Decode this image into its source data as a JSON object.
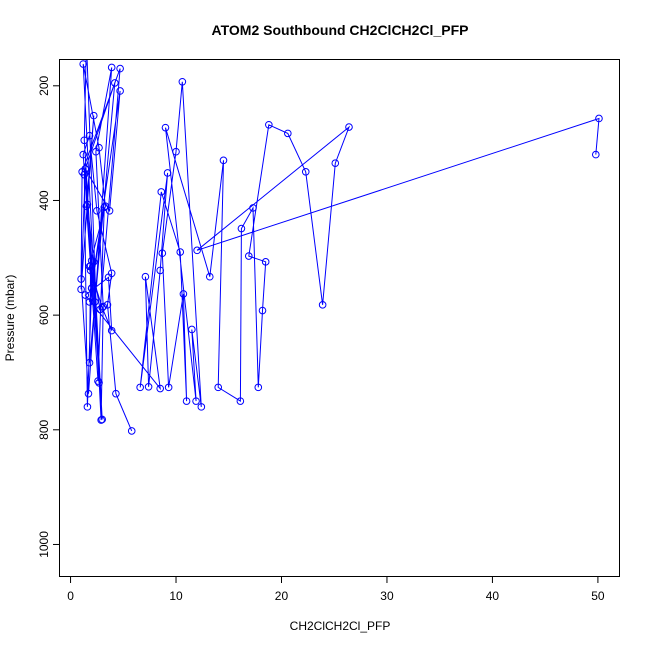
{
  "chart_data": {
    "type": "scatter",
    "title": "ATOM2 Southbound CH2ClCH2Cl_PFP",
    "xlabel": "CH2ClCH2Cl_PFP",
    "ylabel": "Pressure (mbar)",
    "xlim": [
      -1,
      52
    ],
    "ylim": [
      1055,
      155
    ],
    "y_reversed": true,
    "xticks": [
      0,
      10,
      20,
      30,
      40,
      50
    ],
    "yticks": [
      200,
      400,
      600,
      800,
      1000
    ],
    "grid": false,
    "legend": "none",
    "style": "lines-with-open-circles",
    "series_color": "#0000ff",
    "points": [
      [
        5.8,
        802
      ],
      [
        4.3,
        737
      ],
      [
        3.5,
        582
      ],
      [
        3.9,
        527
      ],
      [
        2.5,
        418
      ],
      [
        1.8,
        287
      ],
      [
        1.2,
        320
      ],
      [
        3.0,
        782
      ],
      [
        2.2,
        507
      ],
      [
        1.6,
        407
      ],
      [
        1.3,
        355
      ],
      [
        1.6,
        760
      ],
      [
        2.0,
        553
      ],
      [
        1.8,
        515
      ],
      [
        3.3,
        410
      ],
      [
        2.7,
        308
      ],
      [
        1.2,
        162
      ],
      [
        2.9,
        783
      ],
      [
        3.1,
        585
      ],
      [
        2.4,
        315
      ],
      [
        3.9,
        168
      ],
      [
        1.7,
        737
      ],
      [
        1.0,
        537
      ],
      [
        1.1,
        350
      ],
      [
        4.7,
        170
      ],
      [
        2.8,
        590
      ],
      [
        2.0,
        505
      ],
      [
        1.3,
        295
      ],
      [
        1.5,
        120
      ],
      [
        2.7,
        718
      ],
      [
        2.3,
        577
      ],
      [
        1.4,
        345
      ],
      [
        4.2,
        195
      ],
      [
        1.8,
        683
      ],
      [
        1.9,
        514
      ],
      [
        1.5,
        410
      ],
      [
        2.2,
        252
      ],
      [
        1.0,
        555
      ],
      [
        1.4,
        345
      ],
      [
        3.7,
        418
      ],
      [
        4.7,
        209
      ],
      [
        1.8,
        577
      ],
      [
        2.0,
        553
      ],
      [
        3.2,
        412
      ],
      [
        2.6,
        715
      ],
      [
        1.9,
        522
      ],
      [
        3.0,
        587
      ],
      [
        3.9,
        627
      ],
      [
        3.6,
        534
      ],
      [
        1.4,
        565
      ],
      [
        8.5,
        728
      ],
      [
        7.1,
        533
      ],
      [
        7.4,
        725
      ],
      [
        8.5,
        522
      ],
      [
        9.2,
        352
      ],
      [
        6.6,
        726
      ],
      [
        8.6,
        385
      ],
      [
        10.4,
        490
      ],
      [
        11.0,
        750
      ],
      [
        10.7,
        563
      ],
      [
        9.3,
        726
      ],
      [
        8.7,
        492
      ],
      [
        10.0,
        315
      ],
      [
        10.6,
        193
      ],
      [
        12.4,
        760
      ],
      [
        11.5,
        625
      ],
      [
        11.9,
        750
      ],
      [
        9.0,
        273
      ],
      [
        13.2,
        533
      ],
      [
        14.5,
        330
      ],
      [
        14.0,
        726
      ],
      [
        16.1,
        750
      ],
      [
        16.2,
        449
      ],
      [
        17.3,
        413
      ],
      [
        17.8,
        726
      ],
      [
        18.2,
        592
      ],
      [
        18.5,
        507
      ],
      [
        16.9,
        497
      ],
      [
        18.8,
        268
      ],
      [
        20.6,
        283
      ],
      [
        22.3,
        350
      ],
      [
        23.9,
        582
      ],
      [
        25.1,
        335
      ],
      [
        26.4,
        272
      ],
      [
        12.0,
        487
      ],
      [
        50.1,
        257
      ],
      [
        49.8,
        320
      ]
    ]
  }
}
